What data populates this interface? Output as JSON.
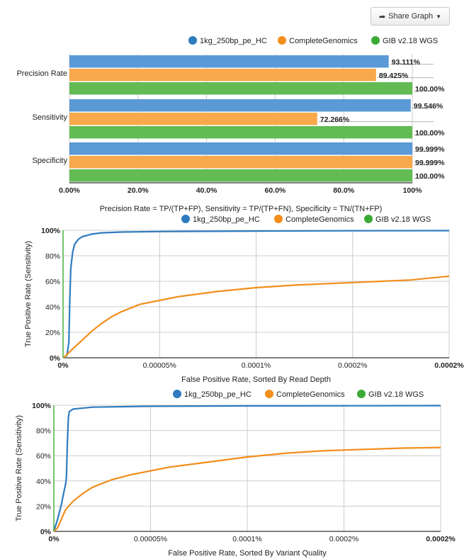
{
  "share_button": {
    "label": "Share Graph",
    "icon": "share-arrow-icon",
    "caret": "▼"
  },
  "colors": {
    "blue": "#2f7bbf",
    "orange": "#f28e1c",
    "green": "#3aaa35",
    "bar_blue": "#5b9ad6",
    "bar_orange": "#f9a94b",
    "bar_green": "#62bb53"
  },
  "legend": [
    "1kg_250bp_pe_HC",
    "CompleteGenomics",
    "GIB v2.18 WGS"
  ],
  "chart_data": [
    {
      "type": "bar",
      "orientation": "horizontal",
      "categories": [
        "Precision Rate",
        "Sensitivity",
        "Specificity"
      ],
      "series": [
        {
          "name": "1kg_250bp_pe_HC",
          "values": [
            93.111,
            99.546,
            99.999
          ],
          "labels": [
            "93.111%",
            "99.546%",
            "99.999%"
          ]
        },
        {
          "name": "CompleteGenomics",
          "values": [
            89.425,
            72.266,
            99.999
          ],
          "labels": [
            "89.425%",
            "72.266%",
            "99.999%"
          ]
        },
        {
          "name": "GIB v2.18 WGS",
          "values": [
            100,
            100,
            100
          ],
          "labels": [
            "100.00%",
            "100.00%",
            "100.00%"
          ]
        }
      ],
      "xlim": [
        0,
        100
      ],
      "xticks": [
        0,
        20,
        40,
        60,
        80,
        100
      ],
      "xtick_labels": [
        "0.00%",
        "20.0%",
        "40.0%",
        "60.0%",
        "80.0%",
        "100%"
      ],
      "grid": true,
      "legend_position": "top-right",
      "caption": "Precision Rate = TP/(TP+FP), Sensitivity = TP/(TP+FN), Specificity = TN/(TN+FP)"
    },
    {
      "type": "line",
      "xlabel": "False Positive Rate, Sorted By Read Depth",
      "ylabel": "True Positive Rate (Sensitivity)",
      "xticks": [
        0,
        5e-05,
        0.0001,
        0.00015,
        0.0002
      ],
      "xtick_labels": [
        "0%",
        "0.00005%",
        "0.0001%",
        "0.0002%",
        "0.0002%"
      ],
      "xlim": [
        0,
        0.0002
      ],
      "yticks": [
        0,
        20,
        40,
        60,
        80,
        100
      ],
      "ytick_labels": [
        "0%",
        "20%",
        "40%",
        "60%",
        "80%",
        "100%"
      ],
      "ylim": [
        0,
        100
      ],
      "grid": true,
      "legend_position": "top-right",
      "series": [
        {
          "name": "1kg_250bp_pe_HC",
          "points": [
            [
              0,
              0
            ],
            [
              2e-06,
              2
            ],
            [
              3e-06,
              12
            ],
            [
              3.5e-06,
              45
            ],
            [
              4e-06,
              70
            ],
            [
              5e-06,
              83
            ],
            [
              6e-06,
              89
            ],
            [
              8e-06,
              93
            ],
            [
              1e-05,
              95
            ],
            [
              1.5e-05,
              97
            ],
            [
              2e-05,
              98
            ],
            [
              3e-05,
              98.6
            ],
            [
              5e-05,
              99
            ],
            [
              0.0001,
              99.4
            ],
            [
              0.00015,
              99.6
            ],
            [
              0.0002,
              99.7
            ]
          ]
        },
        {
          "name": "CompleteGenomics",
          "points": [
            [
              0,
              0
            ],
            [
              1e-06,
              1
            ],
            [
              3e-06,
              4
            ],
            [
              5e-06,
              7
            ],
            [
              1e-05,
              14
            ],
            [
              1.5e-05,
              21
            ],
            [
              2e-05,
              27
            ],
            [
              2.5e-05,
              32
            ],
            [
              3e-05,
              36
            ],
            [
              4e-05,
              42
            ],
            [
              5e-05,
              45
            ],
            [
              6e-05,
              48
            ],
            [
              8e-05,
              52
            ],
            [
              0.0001,
              55
            ],
            [
              0.00012,
              57
            ],
            [
              0.00015,
              59
            ],
            [
              0.00018,
              61
            ],
            [
              0.0002,
              64
            ]
          ]
        },
        {
          "name": "GIB v2.18 WGS",
          "points": [
            [
              0,
              0
            ],
            [
              0,
              100
            ]
          ]
        }
      ]
    },
    {
      "type": "line",
      "xlabel": "False Positive Rate, Sorted By Variant Quality",
      "ylabel": "True Positive Rate (Sensitivity)",
      "xticks": [
        0,
        5e-05,
        0.0001,
        0.00015,
        0.0002
      ],
      "xtick_labels": [
        "0%",
        "0.00005%",
        "0.0001%",
        "0.0002%",
        "0.0002%"
      ],
      "xlim": [
        0,
        0.0002
      ],
      "yticks": [
        0,
        20,
        40,
        60,
        80,
        100
      ],
      "ytick_labels": [
        "0%",
        "20%",
        "40%",
        "60%",
        "80%",
        "100%"
      ],
      "ylim": [
        0,
        100
      ],
      "grid": true,
      "legend_position": "top-right",
      "series": [
        {
          "name": "1kg_250bp_pe_HC",
          "points": [
            [
              0,
              0
            ],
            [
              2e-06,
              10
            ],
            [
              4e-06,
              22
            ],
            [
              5e-06,
              30
            ],
            [
              6e-06,
              37
            ],
            [
              6.5e-06,
              42
            ],
            [
              7e-06,
              70
            ],
            [
              7.5e-06,
              90
            ],
            [
              8e-06,
              95
            ],
            [
              1e-05,
              97
            ],
            [
              2e-05,
              98.5
            ],
            [
              5e-05,
              99.2
            ],
            [
              0.0001,
              99.5
            ],
            [
              0.0002,
              99.7
            ]
          ]
        },
        {
          "name": "CompleteGenomics",
          "points": [
            [
              0,
              0
            ],
            [
              2e-06,
              3
            ],
            [
              4e-06,
              10
            ],
            [
              6e-06,
              17
            ],
            [
              1e-05,
              24
            ],
            [
              1.5e-05,
              30
            ],
            [
              2e-05,
              35
            ],
            [
              3e-05,
              41
            ],
            [
              4e-05,
              45
            ],
            [
              5e-05,
              48
            ],
            [
              6e-05,
              51
            ],
            [
              8e-05,
              55
            ],
            [
              0.0001,
              59
            ],
            [
              0.00012,
              62
            ],
            [
              0.00014,
              64
            ],
            [
              0.00016,
              65
            ],
            [
              0.00018,
              66
            ],
            [
              0.0002,
              66.5
            ]
          ]
        },
        {
          "name": "GIB v2.18 WGS",
          "points": [
            [
              0,
              0
            ],
            [
              0,
              100
            ]
          ]
        }
      ]
    }
  ]
}
